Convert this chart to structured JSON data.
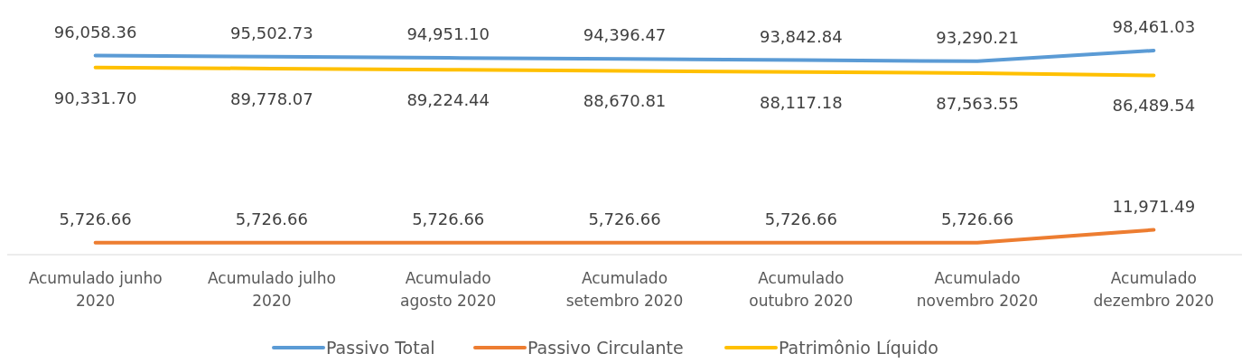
{
  "chart_data": {
    "type": "line",
    "categories": [
      "Acumulado junho 2020",
      "Acumulado julho 2020",
      "Acumulado agosto 2020",
      "Acumulado setembro 2020",
      "Acumulado outubro 2020",
      "Acumulado novembro 2020",
      "Acumulado dezembro 2020"
    ],
    "series": [
      {
        "name": "Passivo Total",
        "color": "#5b9bd5",
        "values": [
          96058.36,
          95502.73,
          94951.1,
          94396.47,
          93842.84,
          93290.21,
          98461.03
        ],
        "value_labels": [
          "96,058.36",
          "95,502.73",
          "94,951.10",
          "94,396.47",
          "93,842.84",
          "93,290.21",
          "98,461.03"
        ]
      },
      {
        "name": "Passivo Circulante",
        "color": "#ed7d31",
        "values": [
          5726.66,
          5726.66,
          5726.66,
          5726.66,
          5726.66,
          5726.66,
          11971.49
        ],
        "value_labels": [
          "5,726.66",
          "5,726.66",
          "5,726.66",
          "5,726.66",
          "5,726.66",
          "5,726.66",
          "11,971.49"
        ]
      },
      {
        "name": "Patrimônio Líquido",
        "color": "#ffc000",
        "values": [
          90331.7,
          89778.07,
          89224.44,
          88670.81,
          88117.18,
          87563.55,
          86489.54
        ],
        "value_labels": [
          "90,331.70",
          "89,778.07",
          "89,224.44",
          "88,670.81",
          "88,117.18",
          "87,563.55",
          "86,489.54"
        ]
      }
    ],
    "legend": "bottom",
    "marker": "none",
    "line_style": "solid"
  }
}
